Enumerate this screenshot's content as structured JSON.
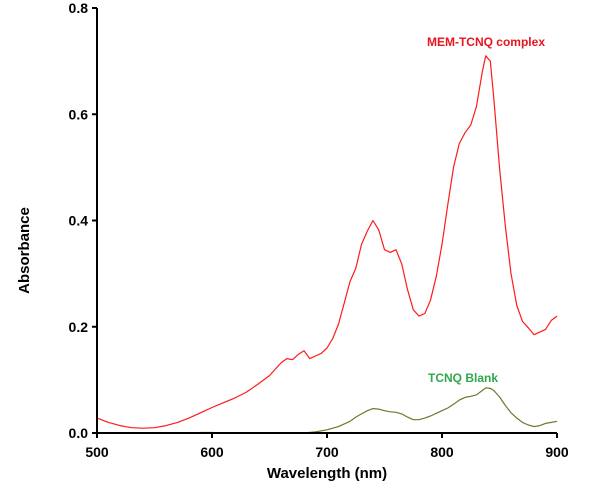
{
  "chart_data": {
    "type": "line",
    "title": "",
    "xlabel": "Wavelength (nm)",
    "ylabel": "Absorbance",
    "xlim": [
      500,
      900
    ],
    "ylim": [
      0,
      0.8
    ],
    "xticks": [
      "500",
      "600",
      "700",
      "800",
      "900"
    ],
    "yticks": [
      "0.0",
      "0.2",
      "0.4",
      "0.6",
      "0.8"
    ],
    "grid": false,
    "series": [
      {
        "name": "MEM-TCNQ complex",
        "color": "#ff1a1a",
        "label_color": "#e8141e",
        "x": [
          500,
          510,
          520,
          530,
          540,
          550,
          560,
          570,
          580,
          590,
          600,
          610,
          620,
          630,
          640,
          650,
          660,
          665,
          670,
          675,
          680,
          685,
          690,
          695,
          700,
          705,
          710,
          715,
          720,
          725,
          730,
          735,
          740,
          745,
          750,
          755,
          760,
          765,
          770,
          775,
          780,
          785,
          790,
          795,
          800,
          805,
          810,
          815,
          820,
          825,
          830,
          835,
          838,
          842,
          845,
          850,
          855,
          860,
          865,
          870,
          875,
          880,
          885,
          890,
          895,
          900
        ],
        "y": [
          0.028,
          0.02,
          0.014,
          0.01,
          0.009,
          0.01,
          0.014,
          0.02,
          0.028,
          0.038,
          0.048,
          0.057,
          0.066,
          0.077,
          0.092,
          0.108,
          0.132,
          0.14,
          0.138,
          0.148,
          0.155,
          0.14,
          0.145,
          0.15,
          0.16,
          0.178,
          0.205,
          0.245,
          0.285,
          0.31,
          0.355,
          0.38,
          0.4,
          0.382,
          0.345,
          0.34,
          0.345,
          0.318,
          0.27,
          0.232,
          0.22,
          0.225,
          0.25,
          0.295,
          0.355,
          0.43,
          0.5,
          0.545,
          0.565,
          0.58,
          0.615,
          0.68,
          0.71,
          0.7,
          0.63,
          0.5,
          0.39,
          0.3,
          0.24,
          0.21,
          0.198,
          0.185,
          0.19,
          0.195,
          0.212,
          0.22
        ]
      },
      {
        "name": "TCNQ Blank",
        "color": "#6b7a2a",
        "label_color": "#2ea84a",
        "x": [
          590,
          600,
          610,
          620,
          630,
          640,
          650,
          660,
          670,
          680,
          690,
          700,
          710,
          720,
          725,
          730,
          735,
          740,
          745,
          750,
          755,
          760,
          765,
          770,
          775,
          780,
          785,
          790,
          795,
          800,
          805,
          810,
          815,
          820,
          825,
          830,
          835,
          838,
          842,
          845,
          850,
          855,
          860,
          865,
          870,
          875,
          880,
          885,
          890,
          895,
          900
        ],
        "y": [
          0.001,
          0.001,
          0.0,
          0.0,
          0.0,
          0.0,
          0.0,
          0.0,
          0.0,
          0.0,
          0.002,
          0.006,
          0.012,
          0.022,
          0.03,
          0.036,
          0.042,
          0.046,
          0.045,
          0.042,
          0.04,
          0.039,
          0.036,
          0.03,
          0.025,
          0.025,
          0.028,
          0.032,
          0.037,
          0.042,
          0.047,
          0.054,
          0.062,
          0.067,
          0.069,
          0.072,
          0.08,
          0.085,
          0.084,
          0.08,
          0.068,
          0.052,
          0.038,
          0.028,
          0.02,
          0.015,
          0.012,
          0.014,
          0.018,
          0.02,
          0.022
        ]
      }
    ]
  }
}
